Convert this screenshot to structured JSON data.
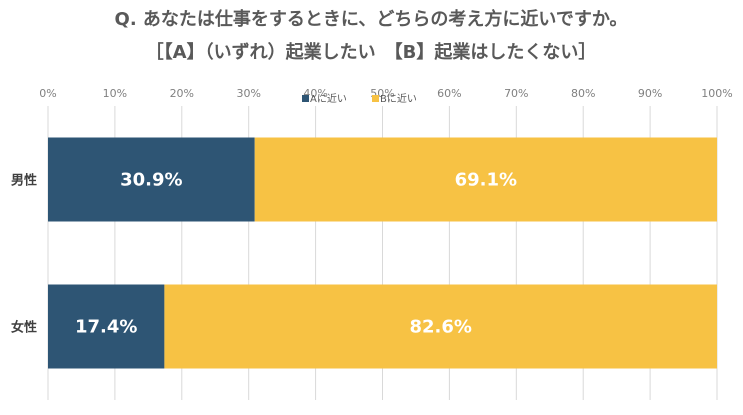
{
  "chart_data": {
    "type": "bar",
    "orientation": "horizontal",
    "stacked": true,
    "title": "Q. あなたは仕事をするときに、どちらの考え方に近いですか。",
    "subtitle": "［【A】（いずれ）起業したい　【B】起業はしたくない］",
    "categories": [
      "男性",
      "女性"
    ],
    "series": [
      {
        "name": "Aに近い",
        "color": "#2e5574",
        "values": [
          30.9,
          17.4
        ],
        "labels": [
          "30.9%",
          "17.4%"
        ]
      },
      {
        "name": "Bに近い",
        "color": "#f7c244",
        "values": [
          69.1,
          82.6
        ],
        "labels": [
          "69.1%",
          "82.6%"
        ]
      }
    ],
    "xlim": [
      0,
      100
    ],
    "x_ticks": [
      "0%",
      "10%",
      "20%",
      "30%",
      "40%",
      "50%",
      "60%",
      "70%",
      "80%",
      "90%",
      "100%"
    ],
    "grid": true,
    "legend_position": "top"
  }
}
